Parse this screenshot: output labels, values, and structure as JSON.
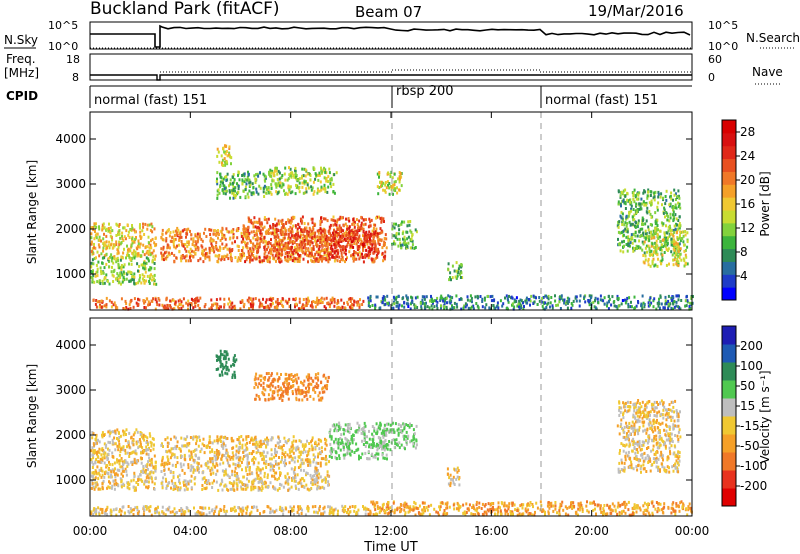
{
  "header": {
    "station": "Buckland Park (fitACF)",
    "beam": "Beam 07",
    "date": "19/Mar/2016"
  },
  "strip_panels": {
    "noise": {
      "left_label": "N.Sky",
      "right_label": "N.Search",
      "left_ticks": [
        "10^5",
        "10^0"
      ],
      "right_ticks": [
        "10^5",
        "10^0"
      ]
    },
    "frequency": {
      "left_label_line1": "Freq.",
      "left_label_line2": "[MHz]",
      "left_ticks": [
        "18",
        "8"
      ],
      "right_label": "Nave",
      "right_ticks": [
        "60",
        "0"
      ]
    },
    "cpid": {
      "label": "CPID",
      "modes": [
        "normal (fast) 151",
        "rbsp 200",
        "normal (fast) 151"
      ]
    }
  },
  "chart_data": [
    {
      "type": "heatmap",
      "title": "",
      "xlabel": "Time UT",
      "ylabel": "Slant Range [km]",
      "x_ticks": [
        "00:00",
        "04:00",
        "08:00",
        "12:00",
        "16:00",
        "20:00",
        "00:00"
      ],
      "y_ticks": [
        1000,
        2000,
        3000,
        4000
      ],
      "ylim": [
        200,
        4600
      ],
      "colorbar": {
        "label": "Power [dB]",
        "ticks": [
          4,
          8,
          12,
          16,
          20,
          24,
          28
        ],
        "range": [
          0,
          30
        ],
        "colors": [
          "#0000ff",
          "#1e3cc8",
          "#286ea0",
          "#2e8b57",
          "#3cb43c",
          "#82d23c",
          "#c8dc32",
          "#f0c832",
          "#f5a028",
          "#f07828",
          "#e85020",
          "#e02818",
          "#d81010",
          "#d80000"
        ]
      },
      "regions": [
        {
          "t": [
            0.0,
            2.6
          ],
          "r": [
            1400,
            2150
          ],
          "level": 16
        },
        {
          "t": [
            0.0,
            2.6
          ],
          "r": [
            800,
            1400
          ],
          "level": 12
        },
        {
          "t": [
            2.8,
            9.5
          ],
          "r": [
            1300,
            2050
          ],
          "level": 20
        },
        {
          "t": [
            6.0,
            11.8
          ],
          "r": [
            1300,
            2300
          ],
          "level": 22
        },
        {
          "t": [
            9.5,
            11.5
          ],
          "r": [
            1400,
            2000
          ],
          "level": 25
        },
        {
          "t": [
            5.0,
            7.0
          ],
          "r": [
            2700,
            3300
          ],
          "level": 10
        },
        {
          "t": [
            7.0,
            9.8
          ],
          "r": [
            2800,
            3400
          ],
          "level": 12
        },
        {
          "t": [
            5.0,
            5.6
          ],
          "r": [
            3400,
            3900
          ],
          "level": 16
        },
        {
          "t": [
            11.4,
            12.4
          ],
          "r": [
            2800,
            3300
          ],
          "level": 14
        },
        {
          "t": [
            12.0,
            13.0
          ],
          "r": [
            1600,
            2200
          ],
          "level": 10
        },
        {
          "t": [
            14.2,
            14.8
          ],
          "r": [
            900,
            1300
          ],
          "level": 11
        },
        {
          "t": [
            21.0,
            23.5
          ],
          "r": [
            1500,
            2900
          ],
          "level": 10
        },
        {
          "t": [
            22.0,
            23.8
          ],
          "r": [
            1200,
            2000
          ],
          "level": 14
        },
        {
          "t": [
            0.0,
            11.0
          ],
          "r": [
            250,
            500
          ],
          "level": 22
        },
        {
          "t": [
            11.0,
            24.0
          ],
          "r": [
            250,
            550
          ],
          "level": 6
        }
      ]
    },
    {
      "type": "heatmap",
      "title": "",
      "xlabel": "Time UT",
      "ylabel": "Slant Range [km]",
      "x_ticks": [
        "00:00",
        "04:00",
        "08:00",
        "12:00",
        "16:00",
        "20:00",
        "00:00"
      ],
      "y_ticks": [
        1000,
        2000,
        3000,
        4000
      ],
      "ylim": [
        200,
        4600
      ],
      "colorbar": {
        "label": "Velocity [m s⁻¹]",
        "ticks": [
          200,
          100,
          50,
          15,
          -15,
          -50,
          -100,
          -200
        ],
        "colors": [
          "#1e1eb4",
          "#1e5ab4",
          "#2e8b57",
          "#50c850",
          "#bebebe",
          "#f0c832",
          "#f5a028",
          "#f07828",
          "#e8321e",
          "#e00000"
        ]
      },
      "regions": [
        {
          "t": [
            0.0,
            2.6
          ],
          "r": [
            800,
            2150
          ],
          "level": 0
        },
        {
          "t": [
            2.8,
            9.5
          ],
          "r": [
            800,
            2000
          ],
          "level": 0
        },
        {
          "t": [
            9.5,
            11.8
          ],
          "r": [
            1500,
            2300
          ],
          "level": 60
        },
        {
          "t": [
            5.0,
            5.8
          ],
          "r": [
            3300,
            3900
          ],
          "level": 150
        },
        {
          "t": [
            6.5,
            9.5
          ],
          "r": [
            2800,
            3400
          ],
          "level": -60
        },
        {
          "t": [
            11.5,
            13.0
          ],
          "r": [
            1700,
            2300
          ],
          "level": 60
        },
        {
          "t": [
            14.2,
            14.7
          ],
          "r": [
            900,
            1300
          ],
          "level": 0
        },
        {
          "t": [
            21.0,
            23.5
          ],
          "r": [
            1200,
            2800
          ],
          "level": 0
        },
        {
          "t": [
            0.0,
            11.0
          ],
          "r": [
            250,
            450
          ],
          "level": 0
        },
        {
          "t": [
            11.0,
            24.0
          ],
          "r": [
            250,
            550
          ],
          "level": -30
        }
      ]
    }
  ]
}
